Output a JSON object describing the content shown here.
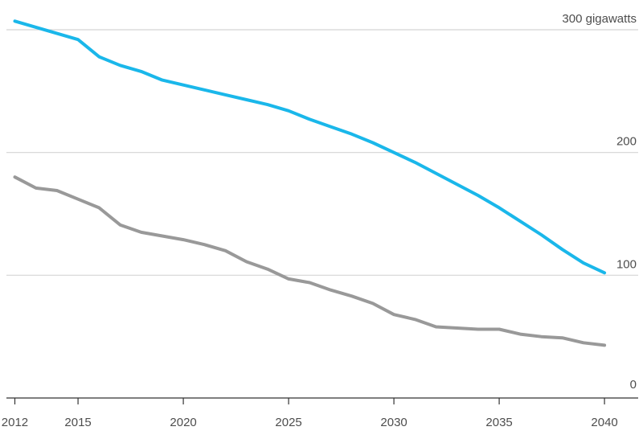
{
  "chart_data": {
    "type": "line",
    "title": "",
    "xlabel": "",
    "ylabel": "",
    "x": [
      2012,
      2013,
      2014,
      2015,
      2016,
      2017,
      2018,
      2019,
      2020,
      2021,
      2022,
      2023,
      2024,
      2025,
      2026,
      2027,
      2028,
      2029,
      2030,
      2031,
      2032,
      2033,
      2034,
      2035,
      2036,
      2037,
      2038,
      2039,
      2040
    ],
    "xlim": [
      2011.6,
      2041.6
    ],
    "ylim": [
      0,
      300
    ],
    "grid": true,
    "x_ticks": [
      {
        "value": 2012,
        "label": "2012"
      },
      {
        "value": 2015,
        "label": "2015"
      },
      {
        "value": 2020,
        "label": "2020"
      },
      {
        "value": 2025,
        "label": "2025"
      },
      {
        "value": 2030,
        "label": "2030"
      },
      {
        "value": 2035,
        "label": "2035"
      },
      {
        "value": 2040,
        "label": "2040"
      }
    ],
    "y_ticks": [
      {
        "value": 0,
        "label": "0"
      },
      {
        "value": 100,
        "label": "100"
      },
      {
        "value": 200,
        "label": "200"
      },
      {
        "value": 300,
        "label": "300 gigawatts"
      }
    ],
    "series": [
      {
        "color": "#1ab7ea",
        "values": [
          307,
          302,
          297,
          292,
          278,
          271,
          266,
          259,
          255,
          251,
          247,
          243,
          239,
          234,
          227,
          221,
          215,
          208,
          200,
          192,
          183,
          174,
          165,
          155,
          144,
          133,
          121,
          110,
          102
        ]
      },
      {
        "color": "#999999",
        "values": [
          180,
          171,
          169,
          162,
          155,
          141,
          135,
          132,
          129,
          125,
          120,
          111,
          105,
          97,
          94,
          88,
          83,
          77,
          68,
          64,
          58,
          57,
          56,
          56,
          52,
          50,
          49,
          45,
          43
        ]
      }
    ]
  }
}
